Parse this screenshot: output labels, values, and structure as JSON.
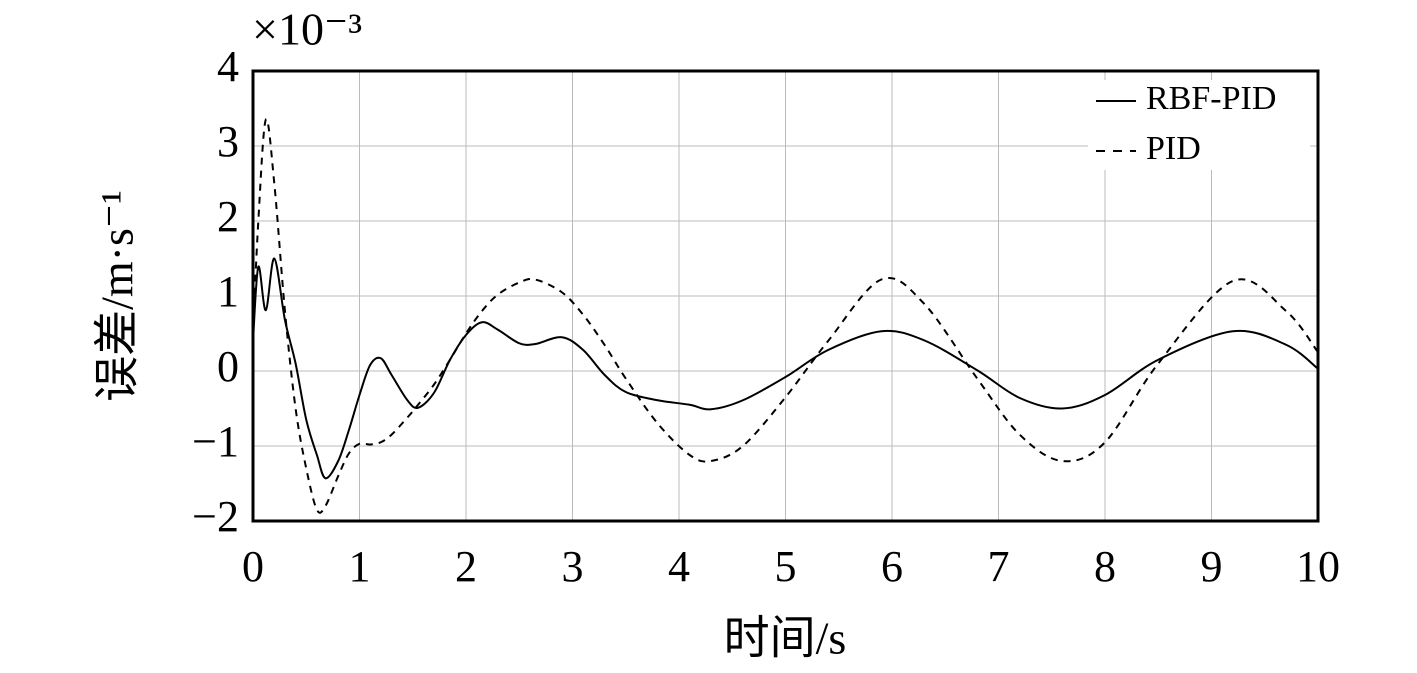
{
  "chart_data": {
    "type": "line",
    "y_multiplier": "×10⁻³",
    "xlabel": "时间/s",
    "ylabel": "误差/m·s⁻¹",
    "x": [
      0,
      0.05,
      0.12,
      0.2,
      0.3,
      0.4,
      0.5,
      0.6,
      0.68,
      0.8,
      0.9,
      1.0,
      1.1,
      1.2,
      1.3,
      1.45,
      1.55,
      1.7,
      1.85,
      2.0,
      2.15,
      2.3,
      2.5,
      2.65,
      2.9,
      3.1,
      3.3,
      3.5,
      3.8,
      4.1,
      4.3,
      4.6,
      5.0,
      5.4,
      5.9,
      6.3,
      6.8,
      7.2,
      7.6,
      8.0,
      8.5,
      9.2,
      9.7,
      10
    ],
    "series": [
      {
        "name": "RBF-PID",
        "color": "#000000",
        "dash": false,
        "values": [
          0.4,
          1.39,
          0.81,
          1.5,
          0.68,
          0.1,
          -0.65,
          -1.12,
          -1.43,
          -1.2,
          -0.79,
          -0.32,
          0.08,
          0.17,
          -0.05,
          -0.39,
          -0.49,
          -0.29,
          0.15,
          0.48,
          0.65,
          0.55,
          0.37,
          0.36,
          0.45,
          0.28,
          -0.05,
          -0.28,
          -0.39,
          -0.45,
          -0.51,
          -0.39,
          -0.08,
          0.28,
          0.53,
          0.41,
          0.01,
          -0.36,
          -0.5,
          -0.32,
          0.15,
          0.53,
          0.35,
          0.03
        ]
      },
      {
        "name": "PID",
        "color": "#000000",
        "dash": true,
        "values": [
          0.5,
          2.0,
          3.35,
          2.5,
          0.8,
          -0.5,
          -1.3,
          -1.85,
          -1.8,
          -1.4,
          -1.1,
          -0.97,
          -0.98,
          -0.95,
          -0.85,
          -0.62,
          -0.45,
          -0.18,
          0.15,
          0.5,
          0.8,
          1.02,
          1.18,
          1.22,
          1.05,
          0.75,
          0.35,
          -0.1,
          -0.7,
          -1.12,
          -1.2,
          -1.0,
          -0.35,
          0.4,
          1.22,
          0.9,
          -0.1,
          -0.85,
          -1.2,
          -0.95,
          0.1,
          1.2,
          0.8,
          0.25
        ]
      }
    ],
    "xlim": [
      0,
      10
    ],
    "xticks": [
      0,
      1,
      2,
      3,
      4,
      5,
      6,
      7,
      8,
      9,
      10
    ],
    "ylim": [
      -2,
      4
    ],
    "yticks": [
      {
        "value": -2,
        "label": "−2"
      },
      {
        "value": -1,
        "label": "−1"
      },
      0,
      1,
      2,
      3,
      4
    ],
    "grid": true,
    "legend": "upper right"
  }
}
